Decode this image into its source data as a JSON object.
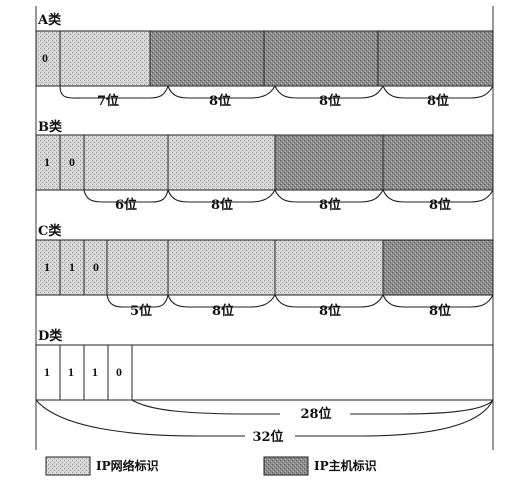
{
  "colors": {
    "network": "#cfcfcf",
    "host": "#8f8f8f",
    "outline": "#222222",
    "background": "#ffffff"
  },
  "classes": [
    {
      "name": "A类",
      "leading_bits": [
        "0"
      ],
      "octets": [
        "network",
        "host",
        "host",
        "host"
      ],
      "brace_labels": [
        "7位",
        "8位",
        "8位",
        "8位"
      ]
    },
    {
      "name": "B类",
      "leading_bits": [
        "1",
        "0"
      ],
      "octets": [
        "network",
        "network",
        "host",
        "host"
      ],
      "brace_labels": [
        "6位",
        "8位",
        "8位",
        "8位"
      ]
    },
    {
      "name": "C类",
      "leading_bits": [
        "1",
        "1",
        "0"
      ],
      "octets": [
        "network",
        "network",
        "network",
        "host"
      ],
      "brace_labels": [
        "5位",
        "8位",
        "8位",
        "8位"
      ]
    },
    {
      "name": "D类",
      "leading_bits": [
        "1",
        "1",
        "1",
        "0"
      ],
      "octets": [
        "blank",
        "blank",
        "blank",
        "blank"
      ],
      "brace_labels": [
        "28位",
        "32位"
      ]
    }
  ],
  "legend": {
    "network_label": "IP网络标识",
    "host_label": "IP主机标识"
  }
}
